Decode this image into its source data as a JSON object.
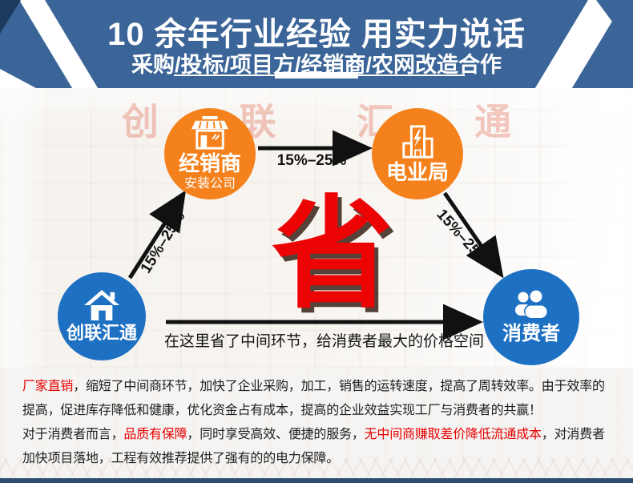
{
  "header": {
    "title": "10 余年行业经验 用实力说话",
    "subtitle": "采购/投标/项目方/经销商/农网改造合作"
  },
  "watermark": "创联汇通",
  "diagram": {
    "nodes": {
      "dealer": {
        "label": "经销商",
        "sublabel": "安装公司",
        "icon": "storefront-icon"
      },
      "bureau": {
        "label": "电业局",
        "icon": "power-building-icon"
      },
      "company": {
        "label": "创联汇通",
        "icon": "house-icon"
      },
      "consumer": {
        "label": "消费者",
        "icon": "people-icon"
      }
    },
    "arrows": {
      "company_to_dealer_label": "15%–25%",
      "dealer_to_bureau_label": "15%–25%",
      "bureau_to_consumer_label": "15%–25%"
    },
    "save_char": "省",
    "caption": "在这里省了中间环节，给消费者最大的价格空间"
  },
  "paragraphs": {
    "p1": [
      {
        "text": "厂家直销",
        "red": true
      },
      {
        "text": "，缩短了中间商环节，加快了企业采购，加工，销售的运转速度，提高了周转效率。由于效率的提高，促进库存降低和健康，优化资金占有成本，提高的企业效益实现工厂与消费者的共赢！",
        "red": false
      }
    ],
    "p2": [
      {
        "text": "对于消费者而言，",
        "red": false
      },
      {
        "text": "品质有保障",
        "red": true
      },
      {
        "text": "，同时享受高效、便捷的服务，",
        "red": false
      },
      {
        "text": "无中间商赚取差价降低流通成本",
        "red": true
      },
      {
        "text": "，对消费者加快项目落地，工程有效推荐提供了强有的的电力保障。",
        "red": false
      }
    ]
  },
  "colors": {
    "header_blue": "#3b6598",
    "header_dark_navy": "#1c3a5e",
    "node_orange": "#f5811d",
    "node_blue": "#1d70c2",
    "accent_red": "#e60000",
    "save_red": "#ec0404",
    "footer_bar": "#2e4e6e"
  }
}
